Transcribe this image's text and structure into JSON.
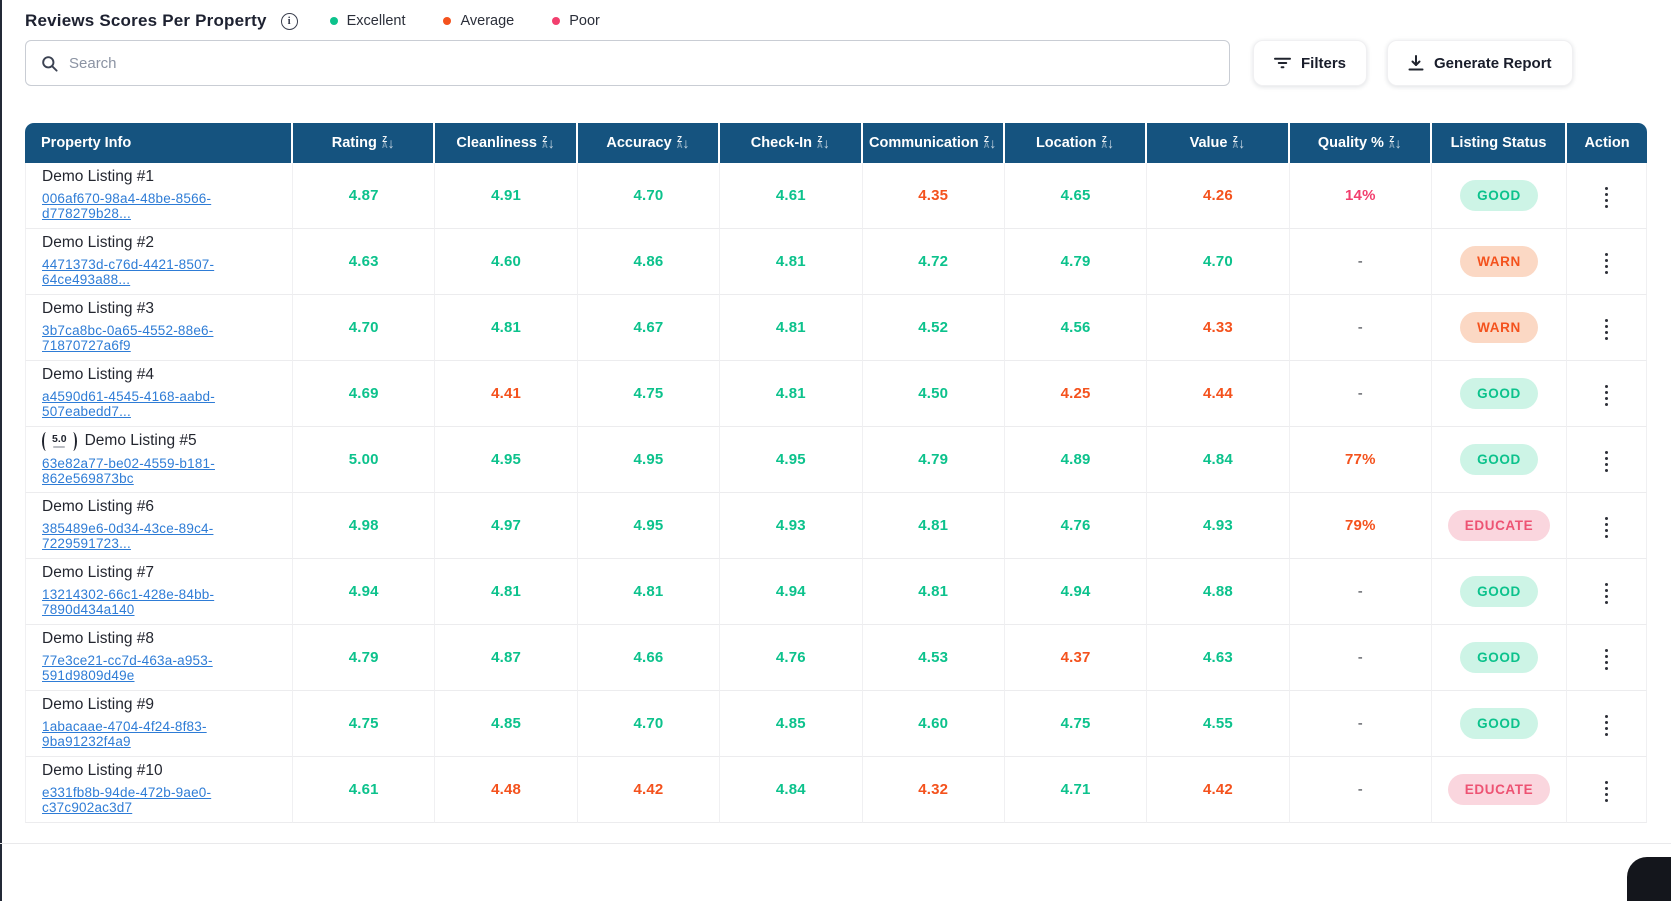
{
  "header": {
    "title": "Reviews Scores Per Property",
    "legend": [
      {
        "label": "Excellent",
        "color": "#0CC28C"
      },
      {
        "label": "Average",
        "color": "#F4521D"
      },
      {
        "label": "Poor",
        "color": "#F23F6E"
      }
    ]
  },
  "toolbar": {
    "search_placeholder": "Search",
    "search_value": "",
    "filters_label": "Filters",
    "generate_report_label": "Generate Report"
  },
  "colors": {
    "header_bg": "#15537F",
    "excellent": "#0CC28C",
    "average": "#F4521D",
    "poor": "#F23F6E",
    "link": "#2E7CD6",
    "status_good_bg": "#CDF4E6",
    "status_warn_bg": "#FBD8C4",
    "status_educate_bg": "#FAD6DE"
  },
  "table": {
    "columns": [
      {
        "label": "Property Info",
        "sortable": false
      },
      {
        "label": "Rating",
        "sortable": true
      },
      {
        "label": "Cleanliness",
        "sortable": true
      },
      {
        "label": "Accuracy",
        "sortable": true
      },
      {
        "label": "Check-In",
        "sortable": true
      },
      {
        "label": "Communication",
        "sortable": true
      },
      {
        "label": "Location",
        "sortable": true
      },
      {
        "label": "Value",
        "sortable": true
      },
      {
        "label": "Quality %",
        "sortable": true
      },
      {
        "label": "Listing Status",
        "sortable": false
      },
      {
        "label": "Action",
        "sortable": false
      }
    ],
    "rows": [
      {
        "name": "Demo Listing #1",
        "uuid": "006af670-98a4-48be-8566-d778279b28...",
        "badge": "",
        "scores": [
          {
            "v": "4.87",
            "tone": "excellent"
          },
          {
            "v": "4.91",
            "tone": "excellent"
          },
          {
            "v": "4.70",
            "tone": "excellent"
          },
          {
            "v": "4.61",
            "tone": "excellent"
          },
          {
            "v": "4.35",
            "tone": "average"
          },
          {
            "v": "4.65",
            "tone": "excellent"
          },
          {
            "v": "4.26",
            "tone": "average"
          }
        ],
        "quality": {
          "v": "14%",
          "tone": "poor"
        },
        "status": {
          "label": "GOOD",
          "tone": "good"
        }
      },
      {
        "name": "Demo Listing #2",
        "uuid": "4471373d-c76d-4421-8507-64ce493a88...",
        "badge": "",
        "scores": [
          {
            "v": "4.63",
            "tone": "excellent"
          },
          {
            "v": "4.60",
            "tone": "excellent"
          },
          {
            "v": "4.86",
            "tone": "excellent"
          },
          {
            "v": "4.81",
            "tone": "excellent"
          },
          {
            "v": "4.72",
            "tone": "excellent"
          },
          {
            "v": "4.79",
            "tone": "excellent"
          },
          {
            "v": "4.70",
            "tone": "excellent"
          }
        ],
        "quality": {
          "v": "-",
          "tone": "none"
        },
        "status": {
          "label": "WARN",
          "tone": "warn"
        }
      },
      {
        "name": "Demo Listing #3",
        "uuid": "3b7ca8bc-0a65-4552-88e6-71870727a6f9",
        "badge": "",
        "scores": [
          {
            "v": "4.70",
            "tone": "excellent"
          },
          {
            "v": "4.81",
            "tone": "excellent"
          },
          {
            "v": "4.67",
            "tone": "excellent"
          },
          {
            "v": "4.81",
            "tone": "excellent"
          },
          {
            "v": "4.52",
            "tone": "excellent"
          },
          {
            "v": "4.56",
            "tone": "excellent"
          },
          {
            "v": "4.33",
            "tone": "average"
          }
        ],
        "quality": {
          "v": "-",
          "tone": "none"
        },
        "status": {
          "label": "WARN",
          "tone": "warn"
        }
      },
      {
        "name": "Demo Listing #4",
        "uuid": "a4590d61-4545-4168-aabd-507eabedd7...",
        "badge": "",
        "scores": [
          {
            "v": "4.69",
            "tone": "excellent"
          },
          {
            "v": "4.41",
            "tone": "average"
          },
          {
            "v": "4.75",
            "tone": "excellent"
          },
          {
            "v": "4.81",
            "tone": "excellent"
          },
          {
            "v": "4.50",
            "tone": "excellent"
          },
          {
            "v": "4.25",
            "tone": "average"
          },
          {
            "v": "4.44",
            "tone": "average"
          }
        ],
        "quality": {
          "v": "-",
          "tone": "none"
        },
        "status": {
          "label": "GOOD",
          "tone": "good"
        }
      },
      {
        "name": "Demo Listing #5",
        "uuid": "63e82a77-be02-4559-b181-862e569873bc",
        "badge": "5.0",
        "scores": [
          {
            "v": "5.00",
            "tone": "excellent"
          },
          {
            "v": "4.95",
            "tone": "excellent"
          },
          {
            "v": "4.95",
            "tone": "excellent"
          },
          {
            "v": "4.95",
            "tone": "excellent"
          },
          {
            "v": "4.79",
            "tone": "excellent"
          },
          {
            "v": "4.89",
            "tone": "excellent"
          },
          {
            "v": "4.84",
            "tone": "excellent"
          }
        ],
        "quality": {
          "v": "77%",
          "tone": "average"
        },
        "status": {
          "label": "GOOD",
          "tone": "good"
        }
      },
      {
        "name": "Demo Listing #6",
        "uuid": "385489e6-0d34-43ce-89c4-7229591723...",
        "badge": "",
        "scores": [
          {
            "v": "4.98",
            "tone": "excellent"
          },
          {
            "v": "4.97",
            "tone": "excellent"
          },
          {
            "v": "4.95",
            "tone": "excellent"
          },
          {
            "v": "4.93",
            "tone": "excellent"
          },
          {
            "v": "4.81",
            "tone": "excellent"
          },
          {
            "v": "4.76",
            "tone": "excellent"
          },
          {
            "v": "4.93",
            "tone": "excellent"
          }
        ],
        "quality": {
          "v": "79%",
          "tone": "average"
        },
        "status": {
          "label": "EDUCATE",
          "tone": "educate"
        }
      },
      {
        "name": "Demo Listing #7",
        "uuid": "13214302-66c1-428e-84bb-7890d434a140",
        "badge": "",
        "scores": [
          {
            "v": "4.94",
            "tone": "excellent"
          },
          {
            "v": "4.81",
            "tone": "excellent"
          },
          {
            "v": "4.81",
            "tone": "excellent"
          },
          {
            "v": "4.94",
            "tone": "excellent"
          },
          {
            "v": "4.81",
            "tone": "excellent"
          },
          {
            "v": "4.94",
            "tone": "excellent"
          },
          {
            "v": "4.88",
            "tone": "excellent"
          }
        ],
        "quality": {
          "v": "-",
          "tone": "none"
        },
        "status": {
          "label": "GOOD",
          "tone": "good"
        }
      },
      {
        "name": "Demo Listing #8",
        "uuid": "77e3ce21-cc7d-463a-a953-591d9809d49e",
        "badge": "",
        "scores": [
          {
            "v": "4.79",
            "tone": "excellent"
          },
          {
            "v": "4.87",
            "tone": "excellent"
          },
          {
            "v": "4.66",
            "tone": "excellent"
          },
          {
            "v": "4.76",
            "tone": "excellent"
          },
          {
            "v": "4.53",
            "tone": "excellent"
          },
          {
            "v": "4.37",
            "tone": "average"
          },
          {
            "v": "4.63",
            "tone": "excellent"
          }
        ],
        "quality": {
          "v": "-",
          "tone": "none"
        },
        "status": {
          "label": "GOOD",
          "tone": "good"
        }
      },
      {
        "name": "Demo Listing #9",
        "uuid": "1abacaae-4704-4f24-8f83-9ba91232f4a9",
        "badge": "",
        "scores": [
          {
            "v": "4.75",
            "tone": "excellent"
          },
          {
            "v": "4.85",
            "tone": "excellent"
          },
          {
            "v": "4.70",
            "tone": "excellent"
          },
          {
            "v": "4.85",
            "tone": "excellent"
          },
          {
            "v": "4.60",
            "tone": "excellent"
          },
          {
            "v": "4.75",
            "tone": "excellent"
          },
          {
            "v": "4.55",
            "tone": "excellent"
          }
        ],
        "quality": {
          "v": "-",
          "tone": "none"
        },
        "status": {
          "label": "GOOD",
          "tone": "good"
        }
      },
      {
        "name": "Demo Listing #10",
        "uuid": "e331fb8b-94de-472b-9ae0-c37c902ac3d7",
        "badge": "",
        "scores": [
          {
            "v": "4.61",
            "tone": "excellent"
          },
          {
            "v": "4.48",
            "tone": "average"
          },
          {
            "v": "4.42",
            "tone": "average"
          },
          {
            "v": "4.84",
            "tone": "excellent"
          },
          {
            "v": "4.32",
            "tone": "average"
          },
          {
            "v": "4.71",
            "tone": "excellent"
          },
          {
            "v": "4.42",
            "tone": "average"
          }
        ],
        "quality": {
          "v": "-",
          "tone": "none"
        },
        "status": {
          "label": "EDUCATE",
          "tone": "educate"
        }
      }
    ]
  }
}
